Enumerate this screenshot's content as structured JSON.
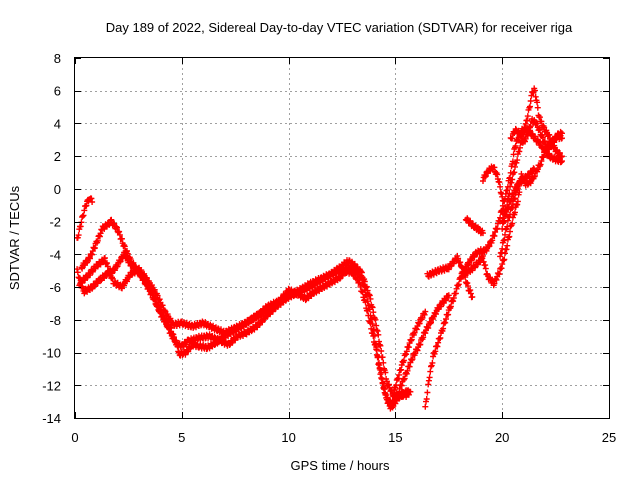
{
  "chart_data": {
    "type": "scatter",
    "title": "Day 189 of 2022, Sidereal Day-to-day VTEC variation (SDTVAR) for receiver riga",
    "xlabel": "GPS time / hours",
    "ylabel": "SDTVAR / TECUs",
    "xlim": [
      0,
      25
    ],
    "ylim": [
      -14,
      8
    ],
    "xticks": [
      0,
      5,
      10,
      15,
      20,
      25
    ],
    "yticks": [
      -14,
      -12,
      -10,
      -8,
      -6,
      -4,
      -2,
      0,
      2,
      4,
      6,
      8
    ],
    "grid": true,
    "marker": "plus",
    "color": "#ff0000",
    "tracks": [
      [
        [
          0.1,
          -5.0
        ],
        [
          0.4,
          -6.3
        ],
        [
          0.8,
          -6.0
        ],
        [
          1.2,
          -5.5
        ],
        [
          1.5,
          -5.2
        ],
        [
          1.8,
          -5.0
        ],
        [
          2.0,
          -4.6
        ],
        [
          2.3,
          -4.0
        ],
        [
          2.6,
          -4.6
        ],
        [
          2.9,
          -5.0
        ],
        [
          3.3,
          -5.6
        ],
        [
          3.6,
          -6.3
        ],
        [
          3.9,
          -7.3
        ],
        [
          4.2,
          -8.0
        ],
        [
          4.5,
          -8.9
        ],
        [
          4.8,
          -9.5
        ],
        [
          5.0,
          -9.6
        ],
        [
          5.3,
          -9.3
        ],
        [
          5.8,
          -9.1
        ],
        [
          6.3,
          -9.0
        ],
        [
          6.8,
          -9.3
        ],
        [
          7.2,
          -9.5
        ],
        [
          7.6,
          -9.0
        ],
        [
          8.0,
          -8.8
        ],
        [
          8.5,
          -8.4
        ],
        [
          9.0,
          -7.7
        ],
        [
          9.5,
          -7.1
        ],
        [
          10.0,
          -6.6
        ],
        [
          10.5,
          -6.3
        ],
        [
          11.0,
          -6.0
        ],
        [
          11.5,
          -5.6
        ],
        [
          12.0,
          -5.2
        ],
        [
          12.5,
          -5.0
        ],
        [
          13.0,
          -5.1
        ],
        [
          13.3,
          -5.7
        ],
        [
          13.6,
          -7.0
        ],
        [
          13.9,
          -8.7
        ],
        [
          14.2,
          -10.4
        ],
        [
          14.4,
          -11.8
        ],
        [
          14.6,
          -12.9
        ],
        [
          14.8,
          -13.4
        ],
        [
          15.0,
          -13.0
        ],
        [
          15.2,
          -12.5
        ],
        [
          15.4,
          -12.6
        ],
        [
          15.6,
          -12.4
        ]
      ],
      [
        [
          0.1,
          -3.1
        ],
        [
          0.3,
          -2.0
        ],
        [
          0.5,
          -1.0
        ],
        [
          0.7,
          -0.5
        ],
        [
          0.8,
          -0.8
        ]
      ],
      [
        [
          0.3,
          -4.8
        ],
        [
          0.7,
          -4.2
        ],
        [
          1.0,
          -3.3
        ],
        [
          1.3,
          -2.4
        ],
        [
          1.7,
          -2.0
        ],
        [
          2.0,
          -2.5
        ],
        [
          2.3,
          -3.5
        ],
        [
          2.6,
          -4.4
        ],
        [
          3.0,
          -5.1
        ],
        [
          3.4,
          -6.0
        ],
        [
          3.8,
          -7.0
        ],
        [
          4.1,
          -7.9
        ],
        [
          4.4,
          -8.4
        ],
        [
          4.7,
          -9.3
        ],
        [
          4.9,
          -10.1
        ],
        [
          5.2,
          -10.0
        ],
        [
          5.5,
          -9.5
        ],
        [
          5.8,
          -9.6
        ],
        [
          6.2,
          -9.7
        ],
        [
          6.6,
          -9.4
        ],
        [
          7.0,
          -9.0
        ],
        [
          7.4,
          -8.7
        ],
        [
          7.8,
          -8.4
        ],
        [
          8.2,
          -8.0
        ],
        [
          8.7,
          -7.6
        ],
        [
          9.2,
          -7.3
        ],
        [
          9.6,
          -6.8
        ],
        [
          10.0,
          -6.2
        ],
        [
          10.4,
          -6.4
        ],
        [
          10.8,
          -6.7
        ],
        [
          11.2,
          -6.3
        ],
        [
          11.6,
          -6.0
        ],
        [
          12.0,
          -5.7
        ],
        [
          12.4,
          -5.4
        ],
        [
          12.8,
          -4.8
        ],
        [
          13.1,
          -4.9
        ],
        [
          13.4,
          -5.4
        ],
        [
          13.7,
          -6.8
        ],
        [
          14.0,
          -8.7
        ],
        [
          14.2,
          -10.6
        ],
        [
          14.4,
          -11.9
        ],
        [
          14.6,
          -12.8
        ],
        [
          14.8,
          -13.1
        ],
        [
          15.0,
          -12.9
        ],
        [
          15.2,
          -12.7
        ],
        [
          15.4,
          -12.5
        ],
        [
          15.6,
          -12.3
        ]
      ],
      [
        [
          0.2,
          -5.8
        ],
        [
          0.6,
          -5.3
        ],
        [
          1.0,
          -4.7
        ],
        [
          1.4,
          -4.3
        ],
        [
          1.8,
          -5.7
        ],
        [
          2.2,
          -6.0
        ],
        [
          2.6,
          -5.2
        ],
        [
          3.0,
          -4.9
        ],
        [
          3.4,
          -5.6
        ],
        [
          3.8,
          -6.4
        ],
        [
          4.2,
          -7.5
        ],
        [
          4.6,
          -8.3
        ],
        [
          5.0,
          -8.2
        ],
        [
          5.5,
          -8.4
        ],
        [
          6.0,
          -8.2
        ],
        [
          6.5,
          -8.5
        ],
        [
          7.0,
          -8.8
        ],
        [
          7.5,
          -8.5
        ],
        [
          8.0,
          -8.2
        ],
        [
          8.5,
          -7.8
        ],
        [
          9.0,
          -7.2
        ],
        [
          9.5,
          -6.9
        ],
        [
          10.0,
          -6.5
        ],
        [
          10.5,
          -6.2
        ],
        [
          11.0,
          -5.8
        ],
        [
          11.5,
          -5.5
        ],
        [
          12.0,
          -5.2
        ],
        [
          12.5,
          -4.7
        ],
        [
          12.8,
          -4.4
        ],
        [
          13.1,
          -4.7
        ],
        [
          13.4,
          -5.1
        ],
        [
          13.8,
          -6.6
        ],
        [
          14.1,
          -8.3
        ],
        [
          14.4,
          -10.4
        ],
        [
          14.6,
          -11.8
        ],
        [
          14.9,
          -12.6
        ],
        [
          15.2,
          -12.5
        ],
        [
          15.5,
          -12.6
        ],
        [
          15.7,
          -12.4
        ]
      ],
      [
        [
          14.9,
          -12.5
        ],
        [
          15.2,
          -11.2
        ],
        [
          15.5,
          -10.0
        ],
        [
          15.8,
          -9.0
        ],
        [
          16.1,
          -8.2
        ],
        [
          16.4,
          -7.5
        ]
      ],
      [
        [
          15.2,
          -12.2
        ],
        [
          15.5,
          -11.3
        ],
        [
          15.8,
          -10.3
        ],
        [
          16.1,
          -9.6
        ],
        [
          16.4,
          -8.7
        ],
        [
          16.7,
          -8.0
        ],
        [
          17.0,
          -7.3
        ],
        [
          17.3,
          -6.8
        ],
        [
          17.5,
          -6.5
        ]
      ],
      [
        [
          16.4,
          -13.4
        ],
        [
          16.6,
          -11.4
        ],
        [
          16.8,
          -10.1
        ],
        [
          17.0,
          -9.4
        ],
        [
          17.2,
          -8.6
        ],
        [
          17.4,
          -7.8
        ],
        [
          17.6,
          -7.1
        ],
        [
          17.8,
          -6.4
        ],
        [
          18.0,
          -5.6
        ],
        [
          18.2,
          -5.0
        ],
        [
          18.4,
          -4.6
        ],
        [
          18.6,
          -4.2
        ],
        [
          18.8,
          -3.9
        ],
        [
          19.0,
          -3.8
        ],
        [
          19.2,
          -3.8
        ],
        [
          19.5,
          -3.2
        ],
        [
          19.8,
          -2.2
        ],
        [
          20.0,
          -1.2
        ],
        [
          20.2,
          -0.2
        ],
        [
          20.4,
          1.0
        ],
        [
          20.6,
          2.6
        ],
        [
          20.8,
          3.3
        ],
        [
          21.0,
          3.7
        ],
        [
          21.2,
          3.6
        ],
        [
          21.4,
          3.3
        ],
        [
          21.6,
          3.0
        ],
        [
          21.8,
          2.7
        ],
        [
          22.0,
          2.3
        ],
        [
          22.2,
          2.0
        ],
        [
          22.5,
          1.8
        ],
        [
          22.8,
          1.7
        ]
      ],
      [
        [
          16.5,
          -5.3
        ],
        [
          17.0,
          -5.0
        ],
        [
          17.5,
          -4.8
        ],
        [
          17.9,
          -4.2
        ],
        [
          18.1,
          -4.8
        ],
        [
          18.4,
          -6.0
        ],
        [
          18.6,
          -6.6
        ]
      ],
      [
        [
          18.1,
          -5.2
        ],
        [
          18.5,
          -5.0
        ],
        [
          18.8,
          -4.6
        ],
        [
          19.1,
          -4.2
        ],
        [
          19.3,
          -5.3
        ],
        [
          19.6,
          -5.8
        ],
        [
          19.9,
          -5.0
        ],
        [
          20.1,
          -4.2
        ],
        [
          20.3,
          -3.0
        ],
        [
          20.5,
          -1.8
        ],
        [
          20.7,
          -0.9
        ],
        [
          20.8,
          -0.2
        ]
      ],
      [
        [
          18.3,
          -1.8
        ],
        [
          18.6,
          -2.2
        ],
        [
          18.9,
          -2.5
        ],
        [
          19.1,
          -2.7
        ]
      ],
      [
        [
          19.1,
          0.6
        ],
        [
          19.4,
          1.2
        ],
        [
          19.6,
          1.3
        ],
        [
          19.8,
          0.7
        ],
        [
          20.0,
          -0.5
        ],
        [
          20.1,
          -1.5
        ]
      ],
      [
        [
          20.0,
          -2.4
        ],
        [
          20.2,
          -1.3
        ],
        [
          20.3,
          -0.4
        ],
        [
          20.4,
          0.3
        ],
        [
          20.5,
          0.8
        ],
        [
          20.6,
          1.3
        ],
        [
          20.8,
          2.4
        ],
        [
          21.0,
          3.3
        ],
        [
          21.2,
          4.5
        ],
        [
          21.4,
          5.8
        ],
        [
          21.5,
          6.1
        ],
        [
          21.6,
          5.5
        ],
        [
          21.7,
          4.6
        ],
        [
          21.8,
          4.1
        ],
        [
          22.0,
          3.6
        ],
        [
          22.2,
          3.2
        ],
        [
          22.4,
          2.6
        ],
        [
          22.6,
          2.2
        ],
        [
          22.8,
          2.0
        ]
      ],
      [
        [
          19.9,
          -4.2
        ],
        [
          20.1,
          -3.0
        ],
        [
          20.3,
          -1.8
        ],
        [
          20.5,
          -0.9
        ],
        [
          20.7,
          0.0
        ],
        [
          20.9,
          0.8
        ],
        [
          21.1,
          0.3
        ],
        [
          21.3,
          0.4
        ],
        [
          21.5,
          0.8
        ],
        [
          21.8,
          1.6
        ],
        [
          22.0,
          2.3
        ],
        [
          22.2,
          2.7
        ],
        [
          22.4,
          3.0
        ],
        [
          22.6,
          3.2
        ],
        [
          22.8,
          3.1
        ]
      ],
      [
        [
          20.4,
          3.0
        ],
        [
          20.6,
          3.6
        ],
        [
          20.8,
          3.4
        ],
        [
          21.0,
          2.8
        ],
        [
          21.2,
          3.4
        ],
        [
          21.4,
          4.2
        ],
        [
          21.6,
          4.0
        ],
        [
          21.8,
          3.4
        ],
        [
          22.0,
          2.8
        ],
        [
          22.2,
          2.5
        ],
        [
          22.4,
          2.9
        ],
        [
          22.6,
          3.3
        ],
        [
          22.8,
          3.4
        ]
      ],
      [
        [
          20.0,
          -2.0
        ],
        [
          20.3,
          -1.0
        ],
        [
          20.6,
          0.0
        ],
        [
          20.9,
          0.5
        ],
        [
          21.2,
          0.8
        ],
        [
          21.5,
          1.2
        ]
      ]
    ]
  }
}
